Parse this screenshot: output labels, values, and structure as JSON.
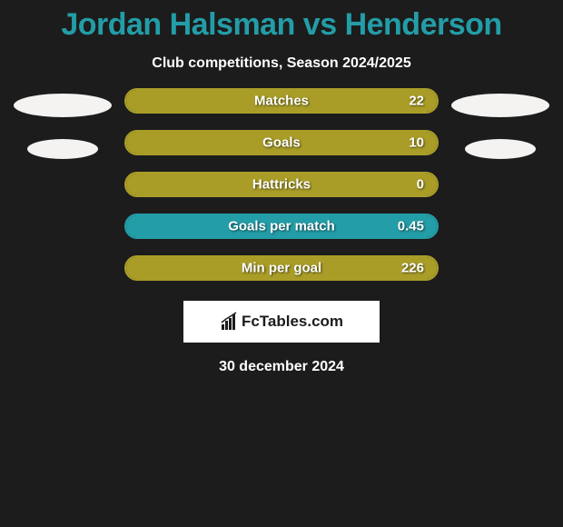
{
  "title": "Jordan Halsman vs Henderson",
  "subtitle": "Club competitions, Season 2024/2025",
  "date": "30 december 2024",
  "logo_text": "FcTables.com",
  "colors": {
    "background": "#1c1c1c",
    "title_color": "#239da7",
    "text_color": "#ffffff",
    "ellipse_color": "#f4f3f2",
    "bar_olive": "#a99d28",
    "bar_teal": "#239da7",
    "logo_bg": "#ffffff",
    "logo_fg": "#1c1c1c"
  },
  "left_ellipses": [
    {
      "size": "big"
    },
    {
      "size": "small"
    }
  ],
  "right_ellipses": [
    {
      "size": "big"
    },
    {
      "size": "small"
    }
  ],
  "bars": [
    {
      "label": "Matches",
      "value": "22",
      "fill_color": "#a99d28",
      "border_color": "#a99d28",
      "fill_pct": 100
    },
    {
      "label": "Goals",
      "value": "10",
      "fill_color": "#a99d28",
      "border_color": "#a99d28",
      "fill_pct": 100
    },
    {
      "label": "Hattricks",
      "value": "0",
      "fill_color": "#a99d28",
      "border_color": "#a99d28",
      "fill_pct": 100
    },
    {
      "label": "Goals per match",
      "value": "0.45",
      "fill_color": "#239da7",
      "border_color": "#239da7",
      "fill_pct": 100
    },
    {
      "label": "Min per goal",
      "value": "226",
      "fill_color": "#a99d28",
      "border_color": "#a99d28",
      "fill_pct": 100
    }
  ]
}
